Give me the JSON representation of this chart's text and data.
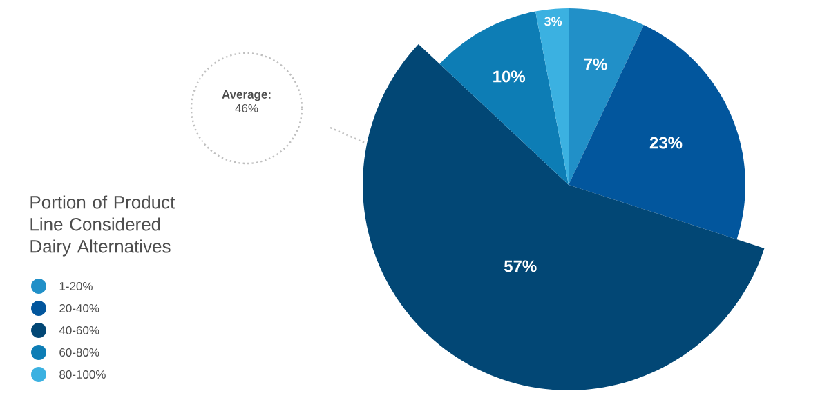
{
  "chart_data": {
    "type": "pie",
    "legend_title": "Portion of Product Line Considered Dairy Alternatives",
    "categories": [
      "1-20%",
      "20-40%",
      "40-60%",
      "60-80%",
      "80-100%"
    ],
    "values": [
      7,
      23,
      57,
      10,
      3
    ],
    "value_labels": [
      "7%",
      "23%",
      "57%",
      "10%",
      "3%"
    ],
    "colors": [
      "#2190c8",
      "#02569d",
      "#024775",
      "#0d7db5",
      "#3bb1e1"
    ],
    "legend": "left",
    "annotations": [
      "**Average:** 46%"
    ]
  }
}
